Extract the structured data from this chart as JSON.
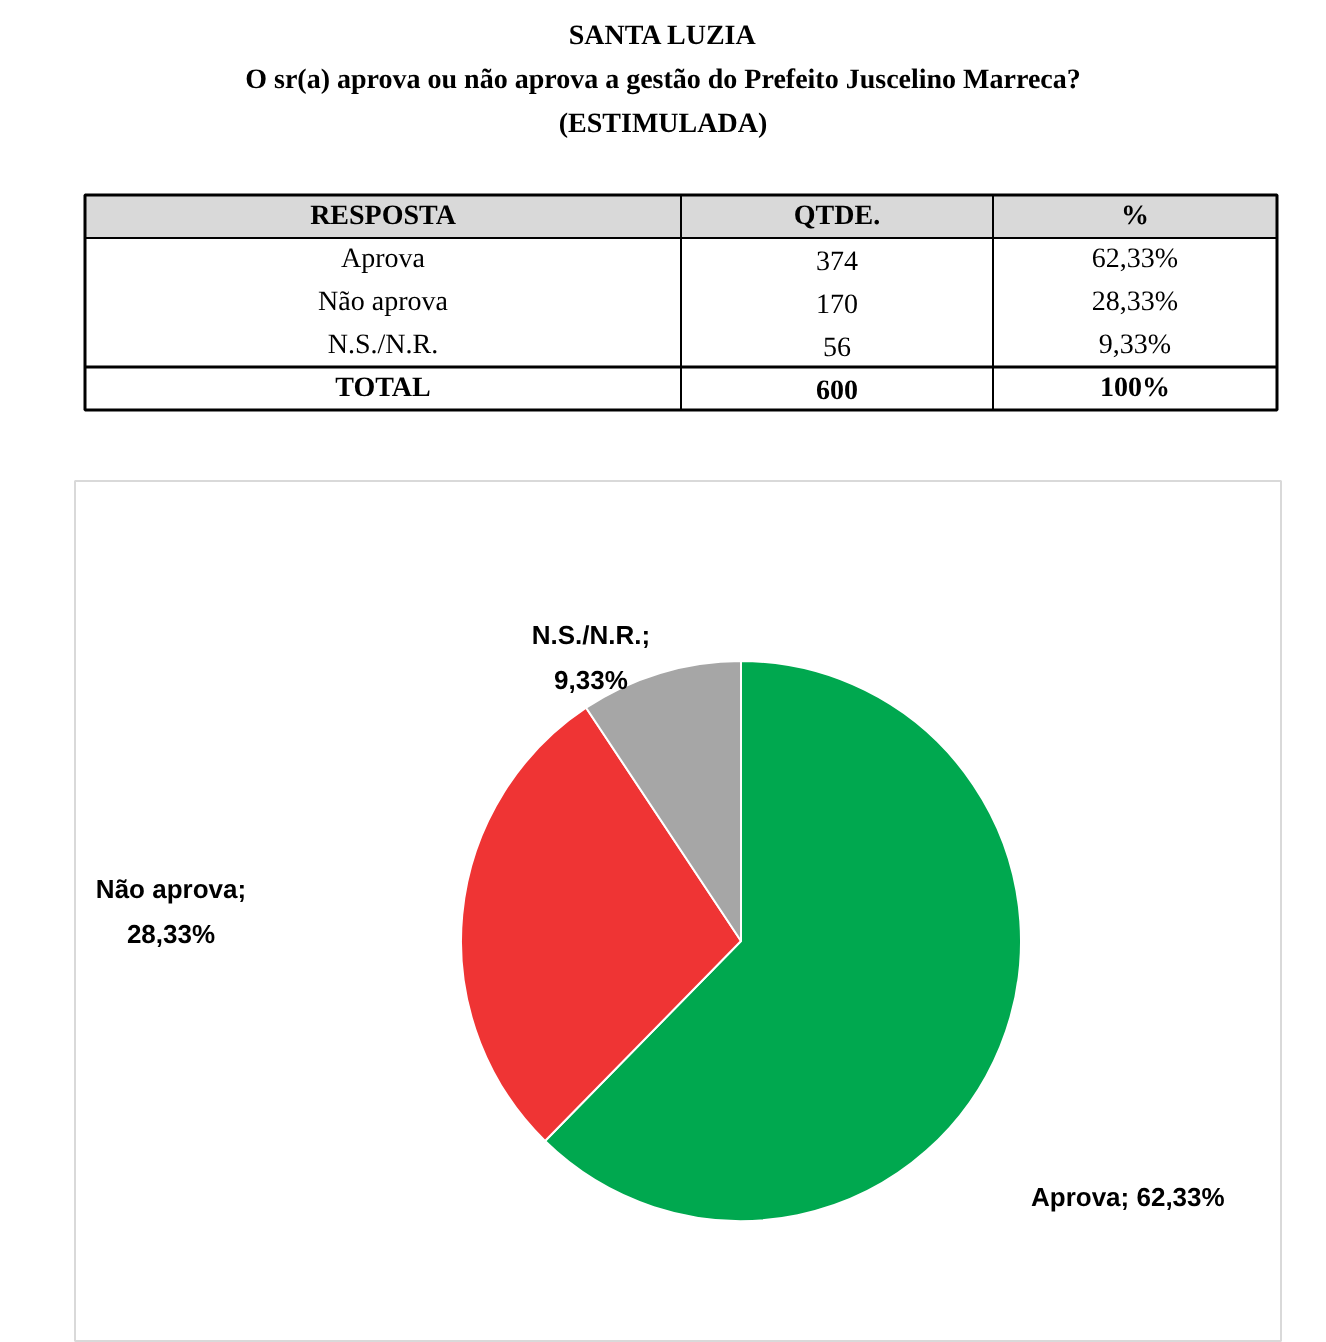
{
  "chart_data": [
    {
      "type": "other",
      "title": "SANTA LUZIA",
      "subtitle": "O sr(a) aprova ou não aprova a gestão do Prefeito Juscelino Marreca?",
      "annotations": [
        "(ESTIMULADA)",
        "RESPOSTA",
        "QTDE.",
        "%",
        "Aprova",
        "374",
        "62,33%",
        "Não aprova",
        "170",
        "28,33%",
        "N.S./N.R.",
        "56",
        "9,33%",
        "TOTAL",
        "600",
        "100%"
      ]
    },
    {
      "type": "pie",
      "categories": [
        null,
        null,
        null
      ],
      "values": [
        62.33,
        28.33,
        9.33
      ],
      "value_labels": [
        "Aprova; 62,33%",
        "Não aprova; 28,33%",
        "N.S./N.R.; 9,33%"
      ],
      "colors": [
        "#00a84f",
        "#ef3434",
        "#a6a6a6"
      ]
    }
  ]
}
